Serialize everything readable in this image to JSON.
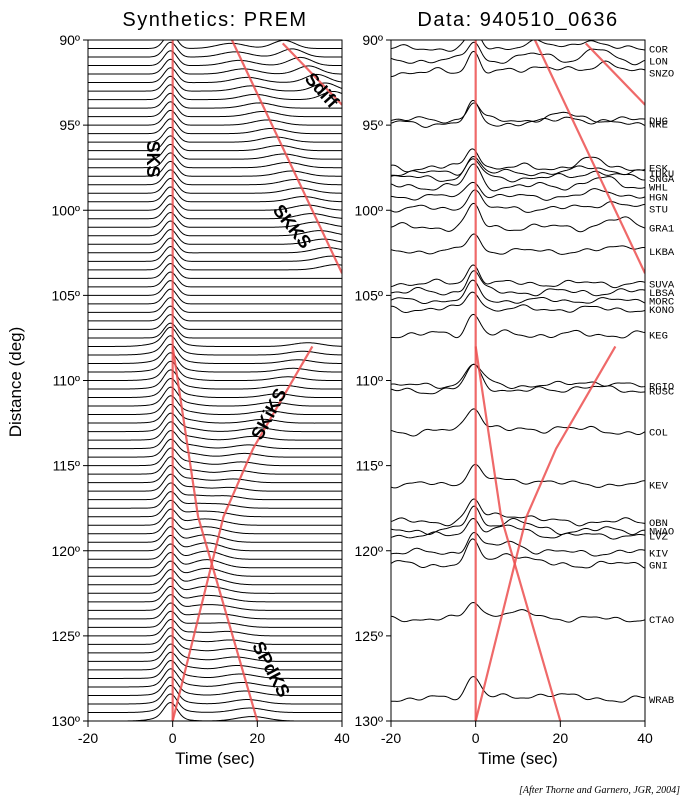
{
  "figure": {
    "credit": "[After Thorne and Garnero, JGR, 2004]",
    "ylabel": "Distance  (deg)",
    "curve_color": "#ec4f4f",
    "trace_color": "#000000"
  },
  "chart_data": [
    {
      "type": "line",
      "title": "Synthetics: PREM",
      "xlabel": "Time  (sec)",
      "ylabel": "Distance  (deg)",
      "xlim": [
        -20,
        40
      ],
      "ylim": [
        90,
        130
      ],
      "y_inverted": true,
      "x_ticks": [
        -20,
        0,
        20,
        40
      ],
      "y_ticks": [
        {
          "value": 90,
          "label": "90º"
        },
        {
          "value": 95,
          "label": "95º"
        },
        {
          "value": 100,
          "label": "100º"
        },
        {
          "value": 105,
          "label": "105º"
        },
        {
          "value": 110,
          "label": "110º"
        },
        {
          "value": 115,
          "label": "115º"
        },
        {
          "value": 120,
          "label": "120º"
        },
        {
          "value": 125,
          "label": "125º"
        },
        {
          "value": 130,
          "label": "130º"
        }
      ],
      "grid": false,
      "traces": {
        "start_distance": 90,
        "end_distance": 130,
        "step": 0.5
      },
      "series": [
        {
          "name": "SKS",
          "points": [
            [
              0,
              90
            ],
            [
              0,
              130
            ]
          ]
        },
        {
          "name": "Sdiff",
          "points": [
            [
              26,
              90.2
            ],
            [
              40,
              93.8
            ]
          ]
        },
        {
          "name": "SKKS",
          "points": [
            [
              14,
              90
            ],
            [
              40,
              103.7
            ]
          ]
        },
        {
          "name": "SKiKS",
          "points": [
            [
              33,
              108
            ],
            [
              26,
              111
            ],
            [
              19,
              114
            ],
            [
              12,
              118
            ],
            [
              6,
              124
            ],
            [
              0,
              130
            ]
          ]
        },
        {
          "name": "SPdKS",
          "points": [
            [
              0,
              108
            ],
            [
              6,
              118
            ],
            [
              13,
              124
            ],
            [
              20,
              130
            ]
          ]
        }
      ],
      "annotations": [
        {
          "text": "SKS",
          "x": -5,
          "y": 97
        },
        {
          "text": "Sdiff",
          "x": 35,
          "y": 93
        },
        {
          "text": "SKKS",
          "x": 28,
          "y": 101
        },
        {
          "text": "SKiKS",
          "x": 23,
          "y": 112
        },
        {
          "text": "SPdKS",
          "x": 23,
          "y": 127
        }
      ]
    },
    {
      "type": "line",
      "title": "Data: 940510_0636",
      "xlabel": "Time  (sec)",
      "ylabel": "",
      "xlim": [
        -20,
        40
      ],
      "ylim": [
        90,
        130
      ],
      "y_inverted": true,
      "x_ticks": [
        -20,
        0,
        20,
        40
      ],
      "y_ticks": [
        {
          "value": 90,
          "label": "90º"
        },
        {
          "value": 95,
          "label": "95º"
        },
        {
          "value": 100,
          "label": "100º"
        },
        {
          "value": 105,
          "label": "105º"
        },
        {
          "value": 110,
          "label": "110º"
        },
        {
          "value": 115,
          "label": "115º"
        },
        {
          "value": 120,
          "label": "120º"
        },
        {
          "value": 125,
          "label": "125º"
        },
        {
          "value": 130,
          "label": "130º"
        }
      ],
      "grid": false,
      "stations": [
        {
          "code": "COR",
          "distance": 90.5
        },
        {
          "code": "LON",
          "distance": 91.2
        },
        {
          "code": "SNZO",
          "distance": 91.9
        },
        {
          "code": "DUG",
          "distance": 94.7
        },
        {
          "code": "NRE",
          "distance": 94.9
        },
        {
          "code": "ESK",
          "distance": 97.5
        },
        {
          "code": "TUKU",
          "distance": 97.8
        },
        {
          "code": "SNGA",
          "distance": 98.1
        },
        {
          "code": "WHL",
          "distance": 98.6
        },
        {
          "code": "HGN",
          "distance": 99.2
        },
        {
          "code": "STU",
          "distance": 99.9
        },
        {
          "code": "GRA1",
          "distance": 101.0
        },
        {
          "code": "LKBA",
          "distance": 102.4
        },
        {
          "code": "SUVA",
          "distance": 104.3
        },
        {
          "code": "LBSA",
          "distance": 104.8
        },
        {
          "code": "MORC",
          "distance": 105.3
        },
        {
          "code": "KONO",
          "distance": 105.8
        },
        {
          "code": "KEG",
          "distance": 107.3
        },
        {
          "code": "RGIO",
          "distance": 110.3
        },
        {
          "code": "RUSC",
          "distance": 110.6
        },
        {
          "code": "COL",
          "distance": 113.0
        },
        {
          "code": "KEV",
          "distance": 116.1
        },
        {
          "code": "OBN",
          "distance": 118.3
        },
        {
          "code": "NWAO",
          "distance": 118.8
        },
        {
          "code": "LVZ",
          "distance": 119.1
        },
        {
          "code": "KIV",
          "distance": 120.1
        },
        {
          "code": "GNI",
          "distance": 120.8
        },
        {
          "code": "CTAO",
          "distance": 124.0
        },
        {
          "code": "WRAB",
          "distance": 128.7
        }
      ],
      "series": [
        {
          "name": "SKS",
          "points": [
            [
              0,
              90
            ],
            [
              0,
              130
            ]
          ]
        },
        {
          "name": "Sdiff",
          "points": [
            [
              26,
              90.2
            ],
            [
              40,
              93.8
            ]
          ]
        },
        {
          "name": "SKKS",
          "points": [
            [
              14,
              90
            ],
            [
              40,
              103.7
            ]
          ]
        },
        {
          "name": "SKiKS",
          "points": [
            [
              33,
              108
            ],
            [
              26,
              111
            ],
            [
              19,
              114
            ],
            [
              12,
              118
            ],
            [
              6,
              124
            ],
            [
              0,
              130
            ]
          ]
        },
        {
          "name": "SPdKS",
          "points": [
            [
              0,
              108
            ],
            [
              6,
              118
            ],
            [
              13,
              124
            ],
            [
              20,
              130
            ]
          ]
        }
      ]
    }
  ]
}
